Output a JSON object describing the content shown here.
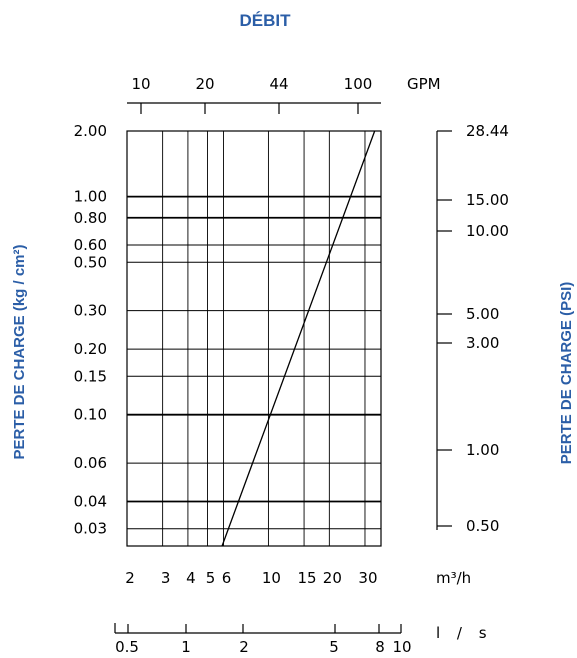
{
  "chart_data": {
    "type": "line",
    "title": "DÉBIT",
    "ylabel_left": "PERTE DE CHARGE (kg / cm²)",
    "ylabel_right": "PERTE DE CHARGE (PSI)",
    "xscale": "log",
    "yscale": "log",
    "xlim": [
      2,
      36
    ],
    "ylim": [
      0.025,
      2.0
    ],
    "x_units": "m³/h",
    "y_units": "kg/cm²",
    "x_ticks": [
      "2",
      "3",
      "4",
      "5",
      "6",
      "10",
      "15",
      "20",
      "30"
    ],
    "y_ticks": [
      "2.00",
      "1.00",
      "0.80",
      "0.60",
      "0.50",
      "0.30",
      "0.20",
      "0.15",
      "0.10",
      "0.06",
      "0.04",
      "0.03"
    ],
    "top_axis": {
      "label": "GPM",
      "ticks": [
        "10",
        "20",
        "44",
        "100"
      ]
    },
    "right_axis": {
      "ticks": [
        "28.44",
        "15.00",
        "10.00",
        "5.00",
        "3.00",
        "1.00",
        "0.50"
      ]
    },
    "bottom_axis2": {
      "label": "l / s",
      "ticks": [
        "0.5",
        "1",
        "2",
        "5",
        "8",
        "10"
      ]
    },
    "grid": true,
    "series": [
      {
        "x": [
          5.9,
          33.5
        ],
        "y": [
          0.025,
          2.0
        ]
      }
    ]
  },
  "colors": {
    "title": "#2b5ea7",
    "ink": "#000000"
  }
}
